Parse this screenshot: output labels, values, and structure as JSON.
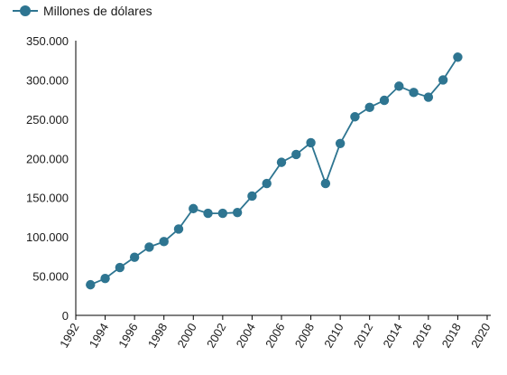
{
  "colors": {
    "series": "#2e7591",
    "axis": "#000000"
  },
  "chart_data": {
    "type": "line",
    "xlim": [
      1992,
      2020
    ],
    "ylim": [
      0,
      350000
    ],
    "grid": false,
    "legend_position": "top-left",
    "x_ticks": [
      1992,
      1994,
      1996,
      1998,
      2000,
      2002,
      2004,
      2006,
      2008,
      2010,
      2012,
      2014,
      2016,
      2018,
      2020
    ],
    "y_ticks": [
      0,
      50000,
      100000,
      150000,
      200000,
      250000,
      300000,
      350000
    ],
    "x_tick_labels": [
      "1992",
      "1994",
      "1996",
      "1998",
      "2000",
      "2002",
      "2004",
      "2006",
      "2008",
      "2010",
      "2012",
      "2014",
      "2016",
      "2018",
      "2020"
    ],
    "y_tick_labels": [
      "0",
      "50.000",
      "100.000",
      "150.000",
      "200.000",
      "250.000",
      "300.000",
      "350.000"
    ],
    "series": [
      {
        "name": "Millones de dólares",
        "x": [
          1993,
          1994,
          1995,
          1996,
          1997,
          1998,
          1999,
          2000,
          2001,
          2002,
          2003,
          2004,
          2005,
          2006,
          2007,
          2008,
          2009,
          2010,
          2011,
          2012,
          2013,
          2014,
          2015,
          2016,
          2017,
          2018
        ],
        "values": [
          39000,
          47000,
          61000,
          74000,
          87000,
          94000,
          110000,
          136000,
          130000,
          130000,
          131000,
          152000,
          168000,
          195000,
          205000,
          220000,
          168000,
          219000,
          253000,
          265000,
          274000,
          292000,
          284000,
          278000,
          300000,
          329000
        ]
      }
    ]
  }
}
